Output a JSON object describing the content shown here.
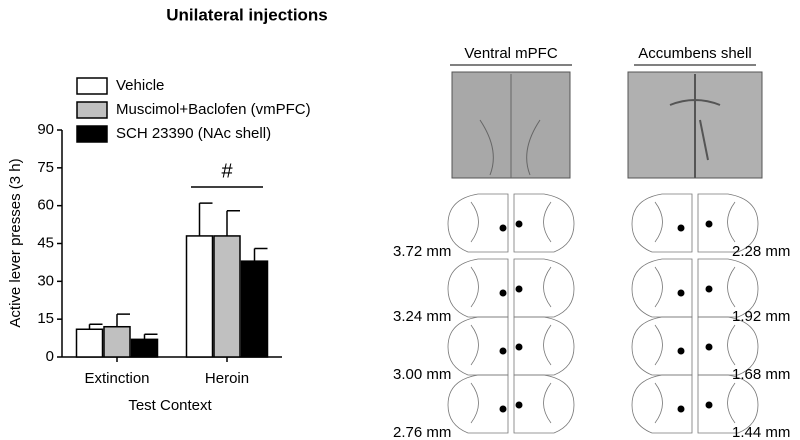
{
  "chart_data": {
    "type": "bar",
    "title": "Unilateral injections",
    "categories": [
      "Extinction",
      "Heroin"
    ],
    "series": [
      {
        "name": "Vehicle",
        "color": "#ffffff",
        "values": [
          11,
          48
        ],
        "errors": [
          2,
          13
        ]
      },
      {
        "name": "Muscimol+Baclofen (vmPFC)",
        "color": "#c0c0c0",
        "values": [
          12,
          48
        ],
        "errors": [
          5,
          10
        ]
      },
      {
        "name": "SCH 23390 (NAc shell)",
        "color": "#000000",
        "values": [
          7,
          38
        ],
        "errors": [
          2,
          5
        ]
      }
    ],
    "ylim": [
      0,
      90
    ],
    "yticks": [
      0,
      15,
      30,
      45,
      60,
      75,
      90
    ],
    "ylabel": "Active lever presses (3 h)",
    "xlabel": "Test Context",
    "annotation": "#",
    "grid": false,
    "legend": "top-left"
  },
  "histology": {
    "regions": [
      {
        "label": "Ventral mPFC",
        "levels": [
          "3.72 mm",
          "3.24 mm",
          "3.00 mm",
          "2.76 mm"
        ]
      },
      {
        "label": "Accumbens shell",
        "levels": [
          "2.28 mm",
          "1.92 mm",
          "1.68 mm",
          "1.44 mm"
        ]
      }
    ]
  }
}
